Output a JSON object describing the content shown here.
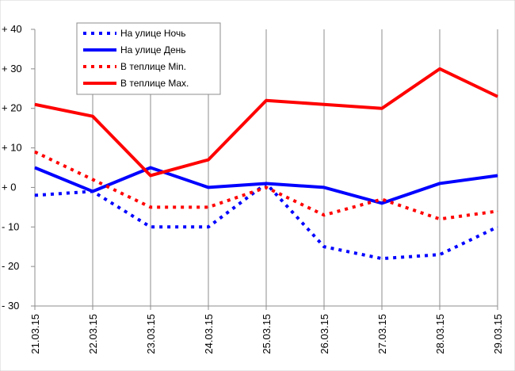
{
  "chart_data": {
    "type": "line",
    "categories": [
      "21.03.15",
      "22.03.15",
      "23.03.15",
      "24.03.15",
      "25.03.15",
      "26.03.15",
      "27.03.15",
      "28.03.15",
      "29.03.15"
    ],
    "y_tick_labels": [
      "+ 40",
      "+ 30",
      "+ 20",
      "+ 10",
      "+ 0",
      "- 10",
      "- 20",
      "- 30"
    ],
    "y_ticks": [
      40,
      30,
      20,
      10,
      0,
      -10,
      -20,
      -30
    ],
    "ylim": [
      -30,
      40
    ],
    "grid": {
      "vertical": true,
      "horizontal": false
    },
    "legend": {
      "placement": "top-left"
    },
    "series": [
      {
        "name": "На улице  Ночь",
        "color": "#0000ff",
        "style": "dotted",
        "values": [
          -2,
          -1,
          -10,
          -10,
          1,
          -15,
          -18,
          -17,
          -10
        ]
      },
      {
        "name": "На улице  День",
        "color": "#0000ff",
        "style": "solid",
        "values": [
          5,
          -1,
          5,
          0,
          1,
          0,
          -4,
          1,
          3
        ]
      },
      {
        "name": "В теплице  Min.",
        "color": "#ff0000",
        "style": "dotted",
        "values": [
          9,
          2,
          -5,
          -5,
          0,
          -7,
          -3,
          -8,
          -6
        ]
      },
      {
        "name": "В теплице  Max.",
        "color": "#ff0000",
        "style": "solid",
        "values": [
          21,
          18,
          3,
          7,
          22,
          21,
          20,
          30,
          23
        ]
      }
    ]
  }
}
